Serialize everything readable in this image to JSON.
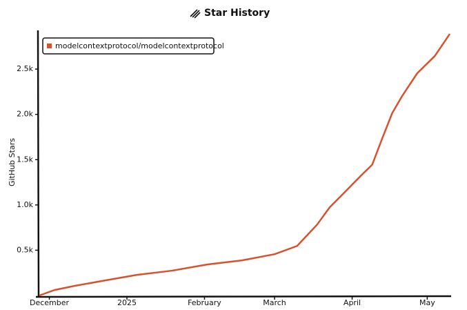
{
  "chart_data": {
    "type": "line",
    "title": "Star History",
    "ylabel": "GitHub Stars",
    "x": [
      -4,
      2,
      10,
      21,
      35,
      49,
      63,
      77,
      90,
      99,
      107,
      112,
      118,
      125,
      129,
      133,
      137,
      141,
      147,
      154,
      160
    ],
    "xlim": [
      -4,
      160
    ],
    "xticks": [
      {
        "value": 0,
        "label": "December"
      },
      {
        "value": 31,
        "label": "2025"
      },
      {
        "value": 62,
        "label": "February"
      },
      {
        "value": 90,
        "label": "March"
      },
      {
        "value": 121,
        "label": "April"
      },
      {
        "value": 151,
        "label": "May"
      }
    ],
    "ylim": [
      0,
      2920
    ],
    "yticks": [
      {
        "value": 500,
        "label": "0.5k"
      },
      {
        "value": 1000,
        "label": "1.0k"
      },
      {
        "value": 1500,
        "label": "1.5k"
      },
      {
        "value": 2000,
        "label": "2.0k"
      },
      {
        "value": 2500,
        "label": "2.5k"
      }
    ],
    "legend": "upper left",
    "series": [
      {
        "name": "modelcontextprotocol/modelcontextprotocol",
        "color": "#d9502c",
        "values": [
          0,
          60,
          106,
          160,
          228,
          274,
          342,
          388,
          456,
          547,
          783,
          973,
          1140,
          1337,
          1444,
          1733,
          2014,
          2204,
          2454,
          2644,
          2888
        ]
      }
    ]
  }
}
